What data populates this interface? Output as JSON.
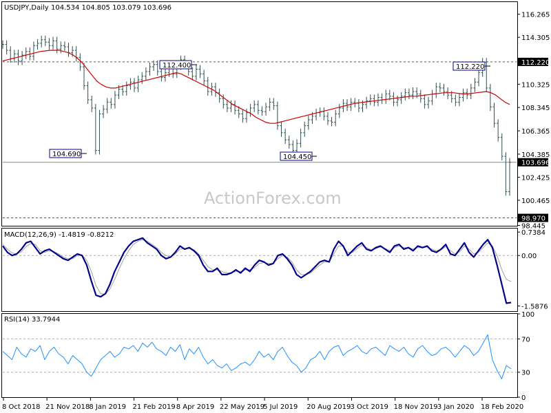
{
  "chart_data": {
    "type": "line",
    "price_panel": {
      "title": "USDJPY,Daily",
      "ohlc_text": "104.534 104.805 103.079 103.696",
      "y_ticks": [
        "116.265",
        "114.305",
        "112.220",
        "110.325",
        "108.345",
        "106.365",
        "104.385",
        "103.696",
        "102.425",
        "100.465",
        "98.970",
        "98.445"
      ],
      "y_tick_values": [
        116.265,
        114.305,
        112.22,
        110.325,
        108.345,
        106.365,
        104.385,
        103.696,
        102.425,
        100.465,
        98.97,
        98.445
      ],
      "ylim": [
        98.3,
        117.3
      ],
      "annotations": [
        {
          "label": "104.690",
          "value": 104.69
        },
        {
          "label": "112.400",
          "value": 112.4
        },
        {
          "label": "104.450",
          "value": 104.45
        },
        {
          "label": "112.220",
          "value": 112.22
        }
      ],
      "hlines": [
        {
          "label": "112.220",
          "value": 112.22,
          "style": "dashed"
        },
        {
          "label": "98.970",
          "value": 98.97,
          "style": "dashed"
        },
        {
          "label": "103.696",
          "value": 103.696,
          "style": "solid"
        }
      ],
      "series": [
        {
          "name": "price",
          "color": "#2f4f4f",
          "values": [
            113.7,
            113.2,
            112.5,
            112.9,
            112.3,
            112.8,
            113.1,
            112.7,
            113.6,
            113.8,
            114.1,
            113.9,
            113.6,
            114.0,
            113.3,
            113.6,
            113.5,
            113.0,
            113.2,
            112.6,
            111.8,
            110.2,
            109.0,
            108.3,
            104.7,
            107.8,
            108.2,
            108.8,
            108.6,
            109.4,
            109.9,
            109.7,
            110.2,
            110.5,
            110.0,
            110.7,
            111.0,
            111.4,
            111.8,
            112.0,
            111.4,
            110.9,
            111.3,
            111.8,
            111.2,
            111.9,
            112.4,
            112.0,
            111.4,
            111.0,
            111.6,
            111.2,
            110.6,
            109.7,
            110.1,
            109.6,
            109.1,
            108.6,
            108.3,
            108.6,
            108.1,
            107.8,
            107.4,
            107.9,
            108.3,
            108.6,
            108.1,
            108.0,
            108.4,
            108.8,
            108.5,
            106.8,
            106.2,
            105.6,
            105.2,
            104.7,
            105.3,
            106.2,
            106.8,
            107.3,
            107.6,
            107.9,
            108.0,
            107.6,
            107.2,
            107.1,
            107.8,
            108.3,
            108.7,
            108.4,
            108.8,
            108.7,
            108.3,
            108.6,
            108.9,
            109.1,
            108.8,
            109.2,
            109.0,
            109.5,
            109.3,
            108.8,
            109.0,
            109.3,
            109.6,
            109.4,
            109.7,
            109.5,
            109.1,
            108.6,
            108.9,
            109.5,
            110.1,
            110.0,
            109.7,
            109.4,
            109.1,
            108.8,
            109.2,
            109.6,
            109.4,
            110.0,
            110.5,
            111.3,
            112.2,
            110.0,
            108.4,
            107.0,
            105.8,
            104.2,
            101.2,
            103.7
          ]
        },
        {
          "name": "SMA",
          "color": "#cc0000",
          "values": [
            112.3,
            112.4,
            112.5,
            112.6,
            112.7,
            112.8,
            112.9,
            113.0,
            113.1,
            113.15,
            113.2,
            113.2,
            113.2,
            113.1,
            113.0,
            112.8,
            112.5,
            112.1,
            111.6,
            111.1,
            110.6,
            110.3,
            110.1,
            110.0,
            110.0,
            110.1,
            110.2,
            110.3,
            110.4,
            110.5,
            110.6,
            110.7,
            110.8,
            110.9,
            111.0,
            111.1,
            111.2,
            111.3,
            111.2,
            111.0,
            110.8,
            110.6,
            110.4,
            110.2,
            110.0,
            109.8,
            109.5,
            109.2,
            108.9,
            108.6,
            108.4,
            108.2,
            108.0,
            107.8,
            107.5,
            107.3,
            107.1,
            107.0,
            107.0,
            107.1,
            107.2,
            107.3,
            107.4,
            107.5,
            107.6,
            107.7,
            107.8,
            107.9,
            108.0,
            108.1,
            108.2,
            108.3,
            108.4,
            108.5,
            108.6,
            108.7,
            108.75,
            108.8,
            108.85,
            108.9,
            108.95,
            109.0,
            109.05,
            109.1,
            109.15,
            109.2,
            109.25,
            109.3,
            109.3,
            109.35,
            109.4,
            109.45,
            109.5,
            109.55,
            109.6,
            109.6,
            109.6,
            109.55,
            109.5,
            109.5,
            109.55,
            109.6,
            109.65,
            109.7,
            109.6,
            109.4,
            109.1,
            108.8,
            108.6
          ]
        }
      ]
    },
    "macd_panel": {
      "title": "MACD(12,26,9) -1.4819 -0.8212",
      "y_ticks": [
        "0.7384",
        "0.00",
        "-1.5876"
      ],
      "y_tick_values": [
        0.7384,
        0.0,
        -1.5876
      ],
      "ylim": [
        -1.75,
        0.85
      ],
      "series": [
        {
          "name": "MACD",
          "color": "#00008b",
          "values": [
            0.3,
            0.1,
            0.0,
            0.05,
            0.2,
            0.4,
            0.45,
            0.25,
            0.05,
            0.15,
            0.2,
            0.1,
            0.0,
            -0.1,
            -0.15,
            -0.05,
            0.05,
            0.0,
            -0.3,
            -0.8,
            -1.25,
            -1.3,
            -1.2,
            -0.9,
            -0.5,
            -0.2,
            0.1,
            0.3,
            0.45,
            0.5,
            0.55,
            0.4,
            0.3,
            0.2,
            0.0,
            -0.1,
            -0.05,
            0.1,
            0.3,
            0.2,
            0.25,
            0.15,
            0.0,
            -0.3,
            -0.5,
            -0.5,
            -0.4,
            -0.6,
            -0.6,
            -0.55,
            -0.45,
            -0.55,
            -0.4,
            -0.5,
            -0.3,
            -0.15,
            -0.2,
            -0.3,
            -0.25,
            0.0,
            0.05,
            -0.1,
            -0.3,
            -0.6,
            -0.7,
            -0.6,
            -0.5,
            -0.35,
            -0.2,
            -0.15,
            -0.2,
            0.2,
            0.45,
            0.3,
            0.0,
            0.15,
            0.3,
            0.4,
            0.2,
            0.15,
            0.25,
            0.3,
            0.2,
            0.1,
            0.3,
            0.35,
            0.2,
            0.25,
            0.15,
            0.3,
            0.25,
            0.3,
            0.15,
            0.1,
            0.2,
            0.35,
            0.05,
            0.0,
            0.2,
            0.4,
            0.1,
            -0.05,
            0.15,
            0.35,
            0.5,
            0.25,
            -0.3,
            -0.9,
            -1.5,
            -1.48
          ]
        },
        {
          "name": "Signal",
          "color": "#a0a0a0",
          "values": [
            0.35,
            0.2,
            0.08,
            0.05,
            0.12,
            0.28,
            0.38,
            0.35,
            0.15,
            0.1,
            0.15,
            0.12,
            0.05,
            -0.05,
            -0.1,
            -0.1,
            0.0,
            0.02,
            -0.15,
            -0.5,
            -0.95,
            -1.2,
            -1.22,
            -1.05,
            -0.75,
            -0.4,
            -0.1,
            0.15,
            0.35,
            0.45,
            0.5,
            0.45,
            0.35,
            0.25,
            0.1,
            0.0,
            -0.05,
            0.05,
            0.2,
            0.22,
            0.22,
            0.18,
            0.05,
            -0.15,
            -0.35,
            -0.45,
            -0.45,
            -0.5,
            -0.55,
            -0.55,
            -0.5,
            -0.5,
            -0.45,
            -0.45,
            -0.38,
            -0.25,
            -0.22,
            -0.25,
            -0.25,
            -0.1,
            0.0,
            -0.05,
            -0.2,
            -0.45,
            -0.6,
            -0.6,
            -0.55,
            -0.42,
            -0.3,
            -0.2,
            -0.2,
            0.05,
            0.3,
            0.3,
            0.1,
            0.1,
            0.22,
            0.32,
            0.25,
            0.18,
            0.22,
            0.27,
            0.22,
            0.15,
            0.25,
            0.3,
            0.25,
            0.25,
            0.2,
            0.25,
            0.25,
            0.27,
            0.2,
            0.15,
            0.18,
            0.28,
            0.15,
            0.05,
            0.12,
            0.3,
            0.2,
            0.05,
            0.1,
            0.25,
            0.4,
            0.3,
            0.0,
            -0.45,
            -0.75,
            -0.82
          ]
        }
      ]
    },
    "rsi_panel": {
      "title": "RSI(14) 33.7944",
      "y_ticks": [
        "100",
        "70",
        "30",
        "0"
      ],
      "y_tick_values": [
        100,
        70,
        30,
        0
      ],
      "ylim": [
        0,
        100
      ],
      "levels": [
        70,
        30
      ],
      "series": [
        {
          "name": "RSI",
          "color": "#1e90ff",
          "values": [
            55,
            50,
            45,
            60,
            52,
            48,
            58,
            55,
            62,
            45,
            55,
            60,
            52,
            48,
            40,
            50,
            45,
            40,
            30,
            25,
            35,
            45,
            50,
            55,
            48,
            52,
            60,
            58,
            62,
            55,
            65,
            60,
            66,
            58,
            55,
            50,
            60,
            55,
            63,
            45,
            58,
            52,
            60,
            48,
            40,
            45,
            38,
            35,
            40,
            32,
            35,
            40,
            42,
            38,
            45,
            55,
            48,
            52,
            45,
            55,
            60,
            50,
            42,
            38,
            30,
            35,
            45,
            48,
            55,
            45,
            55,
            60,
            62,
            50,
            55,
            58,
            62,
            55,
            52,
            58,
            60,
            55,
            50,
            62,
            58,
            55,
            60,
            52,
            48,
            58,
            62,
            55,
            50,
            52,
            58,
            60,
            55,
            48,
            55,
            62,
            58,
            50,
            55,
            65,
            75,
            45,
            32,
            22,
            38,
            34
          ]
        }
      ]
    },
    "x_ticks": [
      "8 Oct 2018",
      "21 Nov 2018",
      "8 Jan 2019",
      "21 Feb 2019",
      "8 Apr 2019",
      "22 May 2019",
      "5 Jul 2019",
      "20 Aug 2019",
      "3 Oct 2019",
      "18 Nov 2019",
      "3 Jan 2020",
      "18 Feb 2020"
    ]
  },
  "watermark": "ActionForex.com",
  "colors": {
    "price": "#2f4f4f",
    "sma": "#cc0000",
    "macd": "#00008b",
    "signal": "#a0a0a0",
    "rsi": "#1e90ff",
    "label_border": "#00008b"
  }
}
